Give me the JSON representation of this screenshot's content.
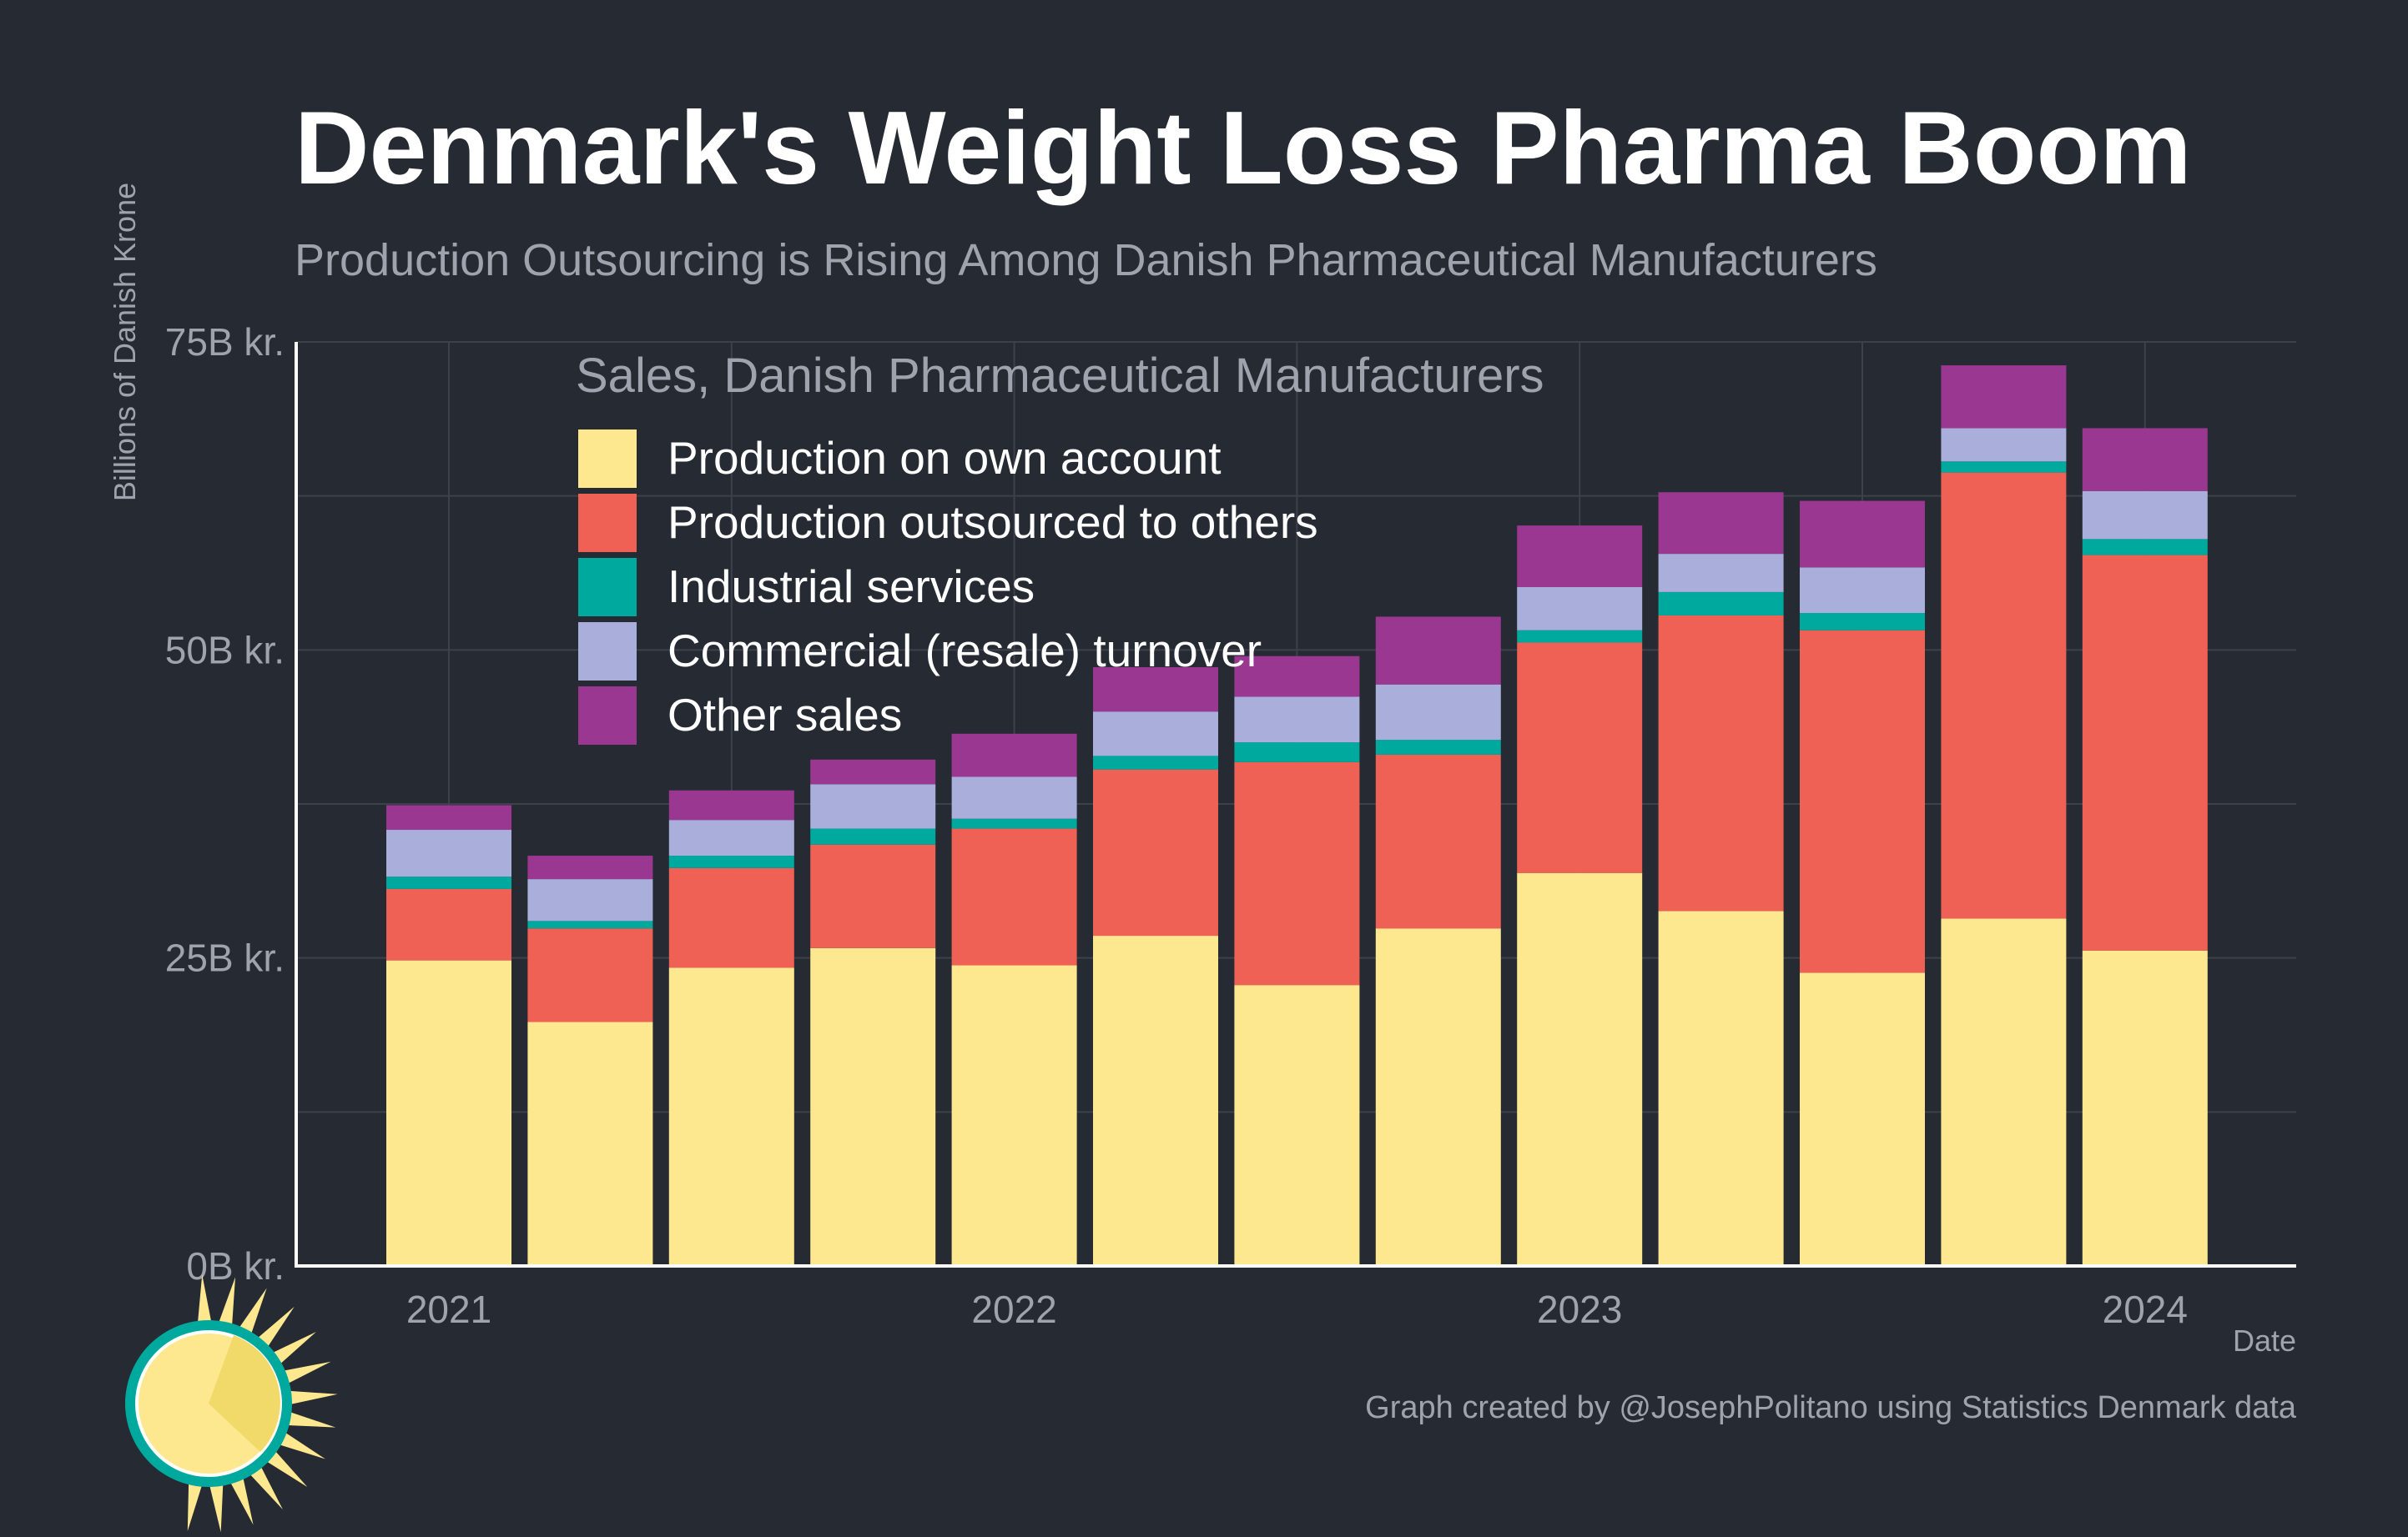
{
  "chart_data": {
    "type": "bar",
    "stacked": true,
    "title": "Denmark's Weight Loss Pharma Boom",
    "subtitle": "Production Outsourcing is Rising Among Danish Pharmaceutical Manufacturers",
    "ylabel": "Billions of Danish Krone",
    "xlabel": "Date",
    "ylim": [
      0,
      75
    ],
    "yticks": [
      "0B kr.",
      "25B kr.",
      "50B kr.",
      "75B kr."
    ],
    "xticks": [
      {
        "label": "2021",
        "at_bar": 0
      },
      {
        "label": "2022",
        "at_bar": 4
      },
      {
        "label": "2023",
        "at_bar": 8
      },
      {
        "label": "2024",
        "at_bar": 12
      }
    ],
    "grid": true,
    "legend_title": "Sales, Danish Pharmaceutical Manufacturers",
    "legend_position": "top-left",
    "caption": "Graph created by @JosephPolitano using Statistics Denmark data",
    "series": [
      {
        "name": "Production on own account",
        "color": "#fee88f",
        "values": [
          24.8,
          19.8,
          24.2,
          25.8,
          24.4,
          26.8,
          22.8,
          27.4,
          31.9,
          28.8,
          23.8,
          28.2,
          25.6
        ]
      },
      {
        "name": "Production outsourced to others",
        "color": "#ef6055",
        "values": [
          5.8,
          7.6,
          8.1,
          8.4,
          11.1,
          13.5,
          18.1,
          14.1,
          18.7,
          24.0,
          27.8,
          36.2,
          32.1
        ]
      },
      {
        "name": "Industrial services",
        "color": "#00a99d",
        "values": [
          1.0,
          0.6,
          1.0,
          1.3,
          0.8,
          1.1,
          1.6,
          1.2,
          1.0,
          1.9,
          1.4,
          0.9,
          1.3
        ]
      },
      {
        "name": "Commercial (resale) turnover",
        "color": "#a9aedb",
        "values": [
          3.8,
          3.4,
          2.9,
          3.6,
          3.4,
          3.6,
          3.7,
          4.5,
          3.5,
          3.1,
          3.7,
          2.7,
          3.9
        ]
      },
      {
        "name": "Other sales",
        "color": "#9a3791",
        "values": [
          2.0,
          1.9,
          2.4,
          2.0,
          3.5,
          3.6,
          3.3,
          5.5,
          5.0,
          5.0,
          5.4,
          5.1,
          5.1
        ]
      }
    ]
  }
}
